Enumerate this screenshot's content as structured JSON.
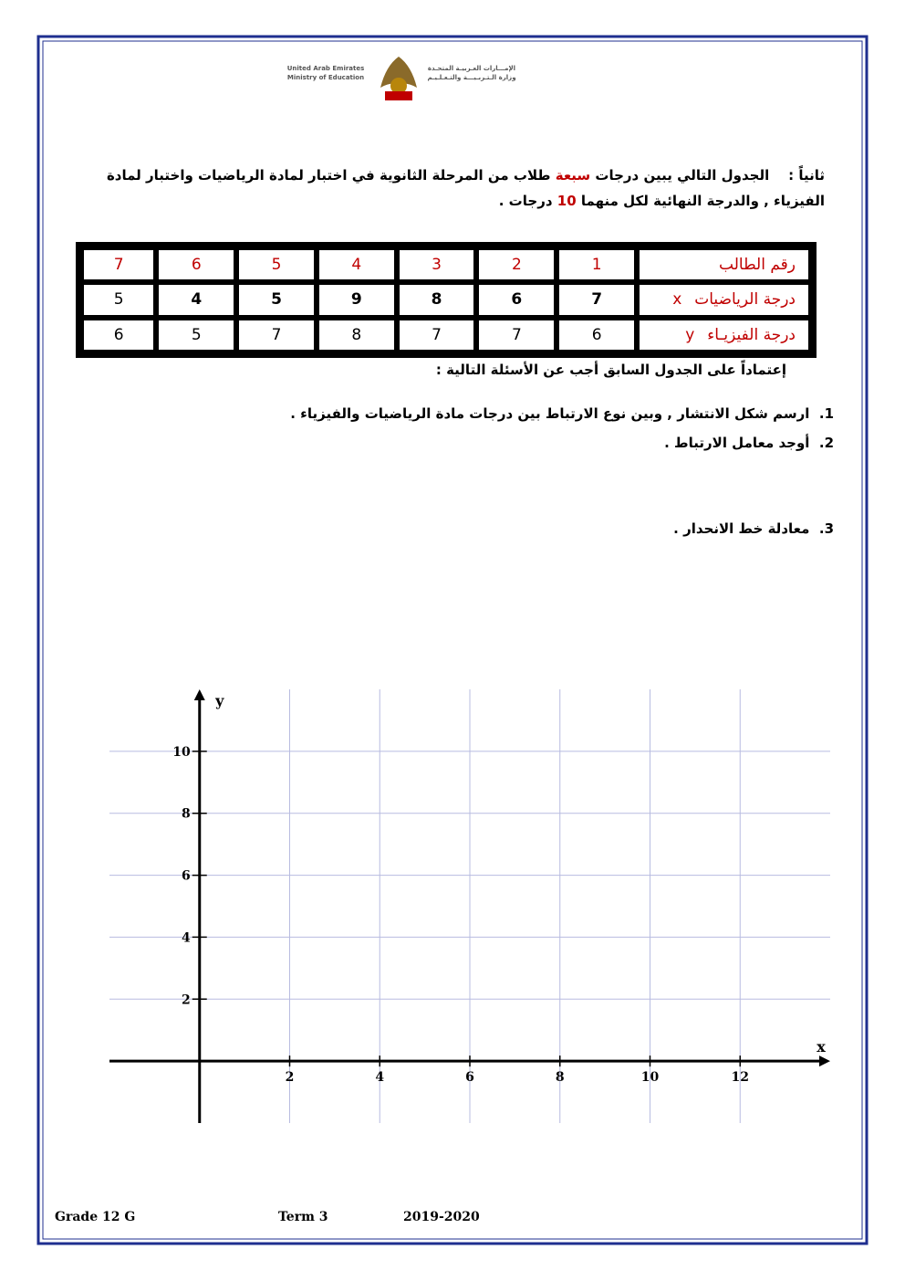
{
  "logo": {
    "english": [
      "United Arab Emirates",
      "Ministry of Education"
    ],
    "arabic": [
      "الإمـــارات العـربيـة المتحـدة",
      "وزارة الـتـربـيـــة والتـعـلـيـم"
    ]
  },
  "intro": {
    "lead": "ثانياً :",
    "part1": "الجدول التالي يبين درجات",
    "highlight1": "سبعة",
    "part2": "طلاب من المرحلة الثانوية في اختبار لمادة الرياضيات واختبار لمادة الفيزياء , والدرجة النهائية  لكل منهما",
    "highlight2": "10",
    "part3": "درجات  ."
  },
  "table": {
    "rows": [
      {
        "label": "رقم الطالب",
        "symbol": null,
        "cells": [
          "1",
          "2",
          "3",
          "4",
          "5",
          "6",
          "7"
        ]
      },
      {
        "label": "درجة الرياضيات",
        "symbol": "x",
        "cells": [
          "7",
          "6",
          "8",
          "9",
          "5",
          "4",
          "5"
        ]
      },
      {
        "label": "درجة الفيزيـاء",
        "symbol": "y",
        "cells": [
          "6",
          "7",
          "7",
          "8",
          "7",
          "5",
          "6"
        ]
      }
    ]
  },
  "instruction": "إعتماداً على الجدول السابق أجب عن الأسئلة التالية :",
  "questions": [
    {
      "number": "1.",
      "text": "ارسم شكل الانتشار , وبين نوع الارتباط  بين درجات مادة الرياضيات والفيزياء ."
    },
    {
      "number": "2.",
      "text": "أوجد معامل الارتباط ."
    },
    {
      "number": "3.",
      "text": "معادلة خط الانحدار ."
    }
  ],
  "graph": {
    "x_label": "x",
    "y_label": "y",
    "xlim": [
      -2,
      14
    ],
    "ylim": [
      -2,
      12
    ],
    "xticks": [
      2,
      4,
      6,
      8,
      10,
      12
    ],
    "yticks": [
      2,
      4,
      6,
      8,
      10
    ]
  },
  "footer": {
    "grade": "Grade  12 G",
    "term": "Term 3",
    "year": "2019-2020"
  }
}
